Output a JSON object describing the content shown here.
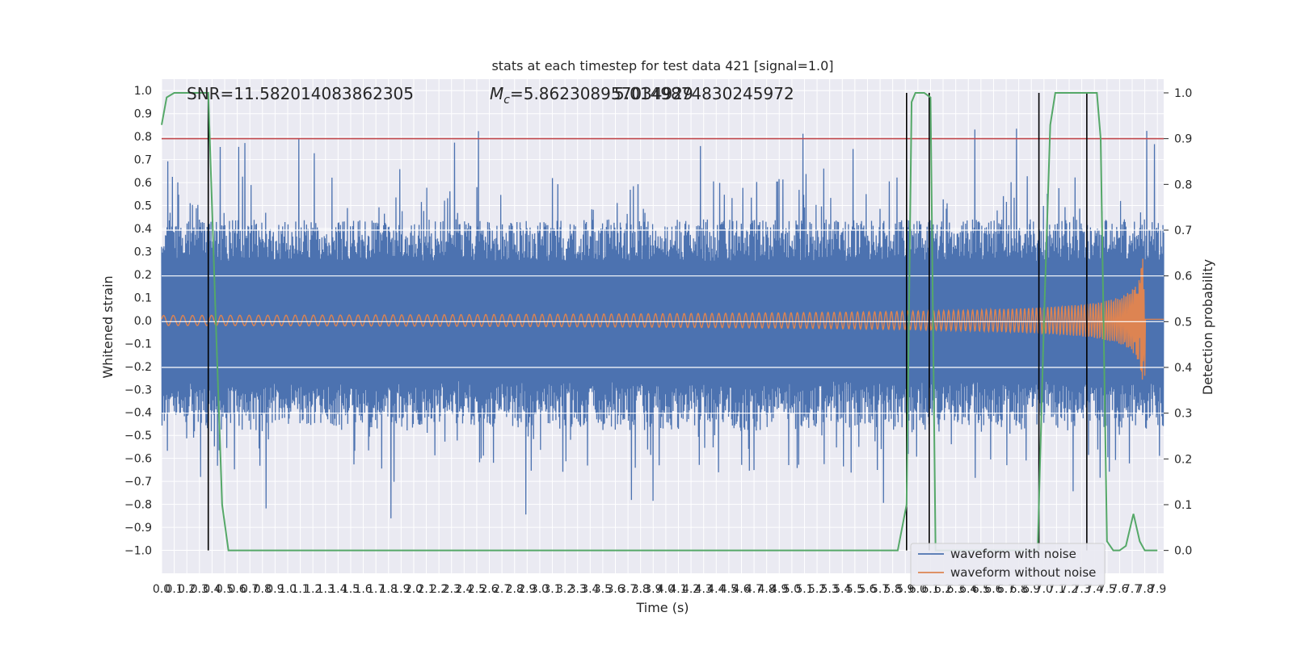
{
  "chart_data": {
    "type": "line",
    "title": "stats at each timestep for test data 421 [signal=1.0]",
    "xlabel": "Time (s)",
    "ylabel": "Whitened strain",
    "y2label": "Detection probability",
    "xlim": [
      0.0,
      7.95
    ],
    "ylim": [
      -1.1,
      1.05
    ],
    "y2lim": [
      -0.05,
      1.03
    ],
    "x_ticks": [
      "0.0",
      "0.1",
      "0.2",
      "0.3",
      "0.4",
      "0.5",
      "0.6",
      "0.7",
      "0.8",
      "0.9",
      "1.0",
      "1.1",
      "1.2",
      "1.3",
      "1.4",
      "1.5",
      "1.6",
      "1.7",
      "1.8",
      "1.9",
      "2.0",
      "2.1",
      "2.2",
      "2.3",
      "2.4",
      "2.5",
      "2.6",
      "2.7",
      "2.8",
      "2.9",
      "3.0",
      "3.1",
      "3.2",
      "3.3",
      "3.4",
      "3.5",
      "3.6",
      "3.7",
      "3.8",
      "3.9",
      "4.0",
      "4.1",
      "4.2",
      "4.3",
      "4.4",
      "4.5",
      "4.6",
      "4.7",
      "4.8",
      "4.9",
      "5.0",
      "5.1",
      "5.2",
      "5.3",
      "5.4",
      "5.5",
      "5.6",
      "5.7",
      "5.8",
      "5.9",
      "6.0",
      "6.1",
      "6.2",
      "6.3",
      "6.4",
      "6.5",
      "6.6",
      "6.7",
      "6.8",
      "6.9",
      "7.0",
      "7.1",
      "7.2",
      "7.3",
      "7.4",
      "7.5",
      "7.6",
      "7.7",
      "7.8",
      "7.9"
    ],
    "y_ticks": [
      "1.0",
      "0.9",
      "0.8",
      "0.7",
      "0.6",
      "0.5",
      "0.4",
      "0.3",
      "0.2",
      "0.1",
      "0.0",
      "−0.1",
      "−0.2",
      "−0.3",
      "−0.4",
      "−0.5",
      "−0.6",
      "−0.7",
      "−0.8",
      "−0.9",
      "−1.0"
    ],
    "y2_ticks": [
      "1.0",
      "0.9",
      "0.8",
      "0.7",
      "0.6",
      "0.5",
      "0.4",
      "0.3",
      "0.2",
      "0.1",
      "0.0"
    ],
    "annotations": {
      "snr": "SNR=11.582014083862305",
      "mc_symbol": "M",
      "mc_sub": "c",
      "mc_value": "=5.862308957034929",
      "overlap_value": "5.0149874830245972"
    },
    "series": [
      {
        "name": "waveform with noise",
        "color": "#4c72b0",
        "envelope_hint": [
          -1.0,
          0.87
        ]
      },
      {
        "name": "waveform without noise",
        "color": "#dd8452",
        "amplitude_start": 0.022,
        "amplitude_peak": 0.27,
        "merger_time": 7.8
      },
      {
        "name": "",
        "color": "#55a868",
        "points": [
          [
            0.0,
            0.93
          ],
          [
            0.04,
            0.99
          ],
          [
            0.1,
            1.0
          ],
          [
            0.18,
            1.0
          ],
          [
            0.3,
            1.0
          ],
          [
            0.37,
            1.0
          ],
          [
            0.43,
            0.5
          ],
          [
            0.48,
            0.1
          ],
          [
            0.53,
            0.0
          ],
          [
            5.84,
            0.0
          ],
          [
            5.91,
            0.1
          ],
          [
            5.95,
            0.98
          ],
          [
            5.98,
            1.0
          ],
          [
            6.05,
            1.0
          ],
          [
            6.1,
            0.99
          ],
          [
            6.14,
            0.0
          ],
          [
            6.95,
            0.0
          ],
          [
            7.0,
            0.5
          ],
          [
            7.05,
            0.93
          ],
          [
            7.09,
            1.0
          ],
          [
            7.42,
            1.0
          ],
          [
            7.45,
            0.9
          ],
          [
            7.5,
            0.02
          ],
          [
            7.55,
            0.0
          ],
          [
            7.6,
            0.0
          ],
          [
            7.65,
            0.01
          ],
          [
            7.71,
            0.08
          ],
          [
            7.76,
            0.02
          ],
          [
            7.8,
            0.0
          ],
          [
            7.9,
            0.0
          ]
        ]
      }
    ],
    "threshold": {
      "value": 0.9,
      "color": "#c44e52"
    },
    "vlines": [
      0.37,
      5.91,
      6.09,
      6.96,
      7.34
    ],
    "legend": {
      "placement": "lower-right",
      "entries": [
        "waveform with noise",
        "waveform without noise"
      ]
    },
    "grid": true
  }
}
